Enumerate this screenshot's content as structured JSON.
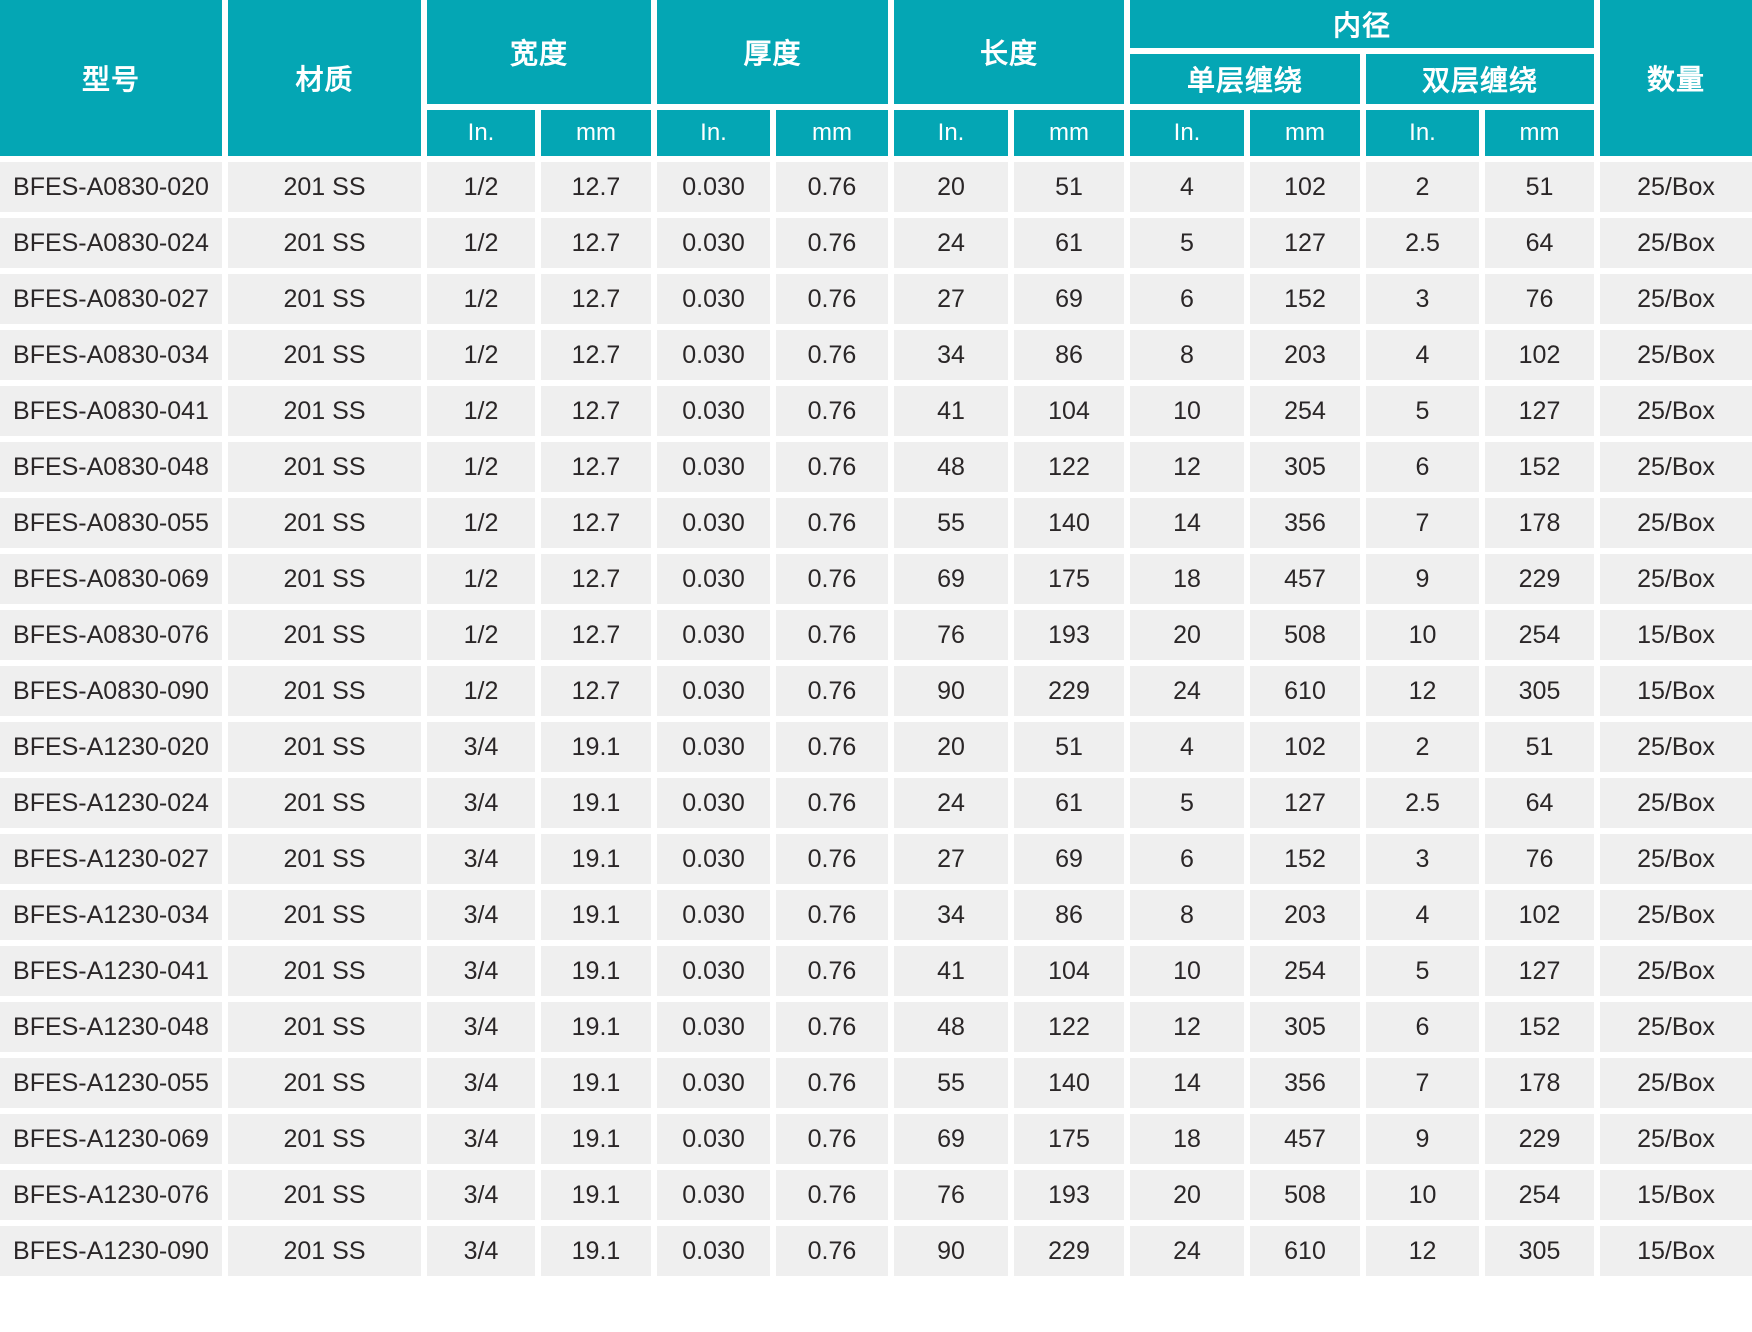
{
  "table": {
    "accent_color": "#04a6b4",
    "row_bg": "#efefef",
    "text_color": "#2a2627",
    "header": {
      "model": "型号",
      "material": "材质",
      "width": "宽度",
      "thickness": "厚度",
      "length": "长度",
      "inner_diameter": "内径",
      "single_wrap": "单层缠绕",
      "double_wrap": "双层缠绕",
      "quantity": "数量",
      "unit_in": "In.",
      "unit_mm": "mm"
    },
    "columns": [
      "model",
      "material",
      "width_in",
      "width_mm",
      "thickness_in",
      "thickness_mm",
      "length_in",
      "length_mm",
      "single_in",
      "single_mm",
      "double_in",
      "double_mm",
      "quantity"
    ],
    "rows": [
      [
        "BFES-A0830-020",
        "201 SS",
        "1/2",
        "12.7",
        "0.030",
        "0.76",
        "20",
        "51",
        "4",
        "102",
        "2",
        "51",
        "25/Box"
      ],
      [
        "BFES-A0830-024",
        "201 SS",
        "1/2",
        "12.7",
        "0.030",
        "0.76",
        "24",
        "61",
        "5",
        "127",
        "2.5",
        "64",
        "25/Box"
      ],
      [
        "BFES-A0830-027",
        "201 SS",
        "1/2",
        "12.7",
        "0.030",
        "0.76",
        "27",
        "69",
        "6",
        "152",
        "3",
        "76",
        "25/Box"
      ],
      [
        "BFES-A0830-034",
        "201 SS",
        "1/2",
        "12.7",
        "0.030",
        "0.76",
        "34",
        "86",
        "8",
        "203",
        "4",
        "102",
        "25/Box"
      ],
      [
        "BFES-A0830-041",
        "201 SS",
        "1/2",
        "12.7",
        "0.030",
        "0.76",
        "41",
        "104",
        "10",
        "254",
        "5",
        "127",
        "25/Box"
      ],
      [
        "BFES-A0830-048",
        "201 SS",
        "1/2",
        "12.7",
        "0.030",
        "0.76",
        "48",
        "122",
        "12",
        "305",
        "6",
        "152",
        "25/Box"
      ],
      [
        "BFES-A0830-055",
        "201 SS",
        "1/2",
        "12.7",
        "0.030",
        "0.76",
        "55",
        "140",
        "14",
        "356",
        "7",
        "178",
        "25/Box"
      ],
      [
        "BFES-A0830-069",
        "201 SS",
        "1/2",
        "12.7",
        "0.030",
        "0.76",
        "69",
        "175",
        "18",
        "457",
        "9",
        "229",
        "25/Box"
      ],
      [
        "BFES-A0830-076",
        "201 SS",
        "1/2",
        "12.7",
        "0.030",
        "0.76",
        "76",
        "193",
        "20",
        "508",
        "10",
        "254",
        "15/Box"
      ],
      [
        "BFES-A0830-090",
        "201 SS",
        "1/2",
        "12.7",
        "0.030",
        "0.76",
        "90",
        "229",
        "24",
        "610",
        "12",
        "305",
        "15/Box"
      ],
      [
        "BFES-A1230-020",
        "201 SS",
        "3/4",
        "19.1",
        "0.030",
        "0.76",
        "20",
        "51",
        "4",
        "102",
        "2",
        "51",
        "25/Box"
      ],
      [
        "BFES-A1230-024",
        "201 SS",
        "3/4",
        "19.1",
        "0.030",
        "0.76",
        "24",
        "61",
        "5",
        "127",
        "2.5",
        "64",
        "25/Box"
      ],
      [
        "BFES-A1230-027",
        "201 SS",
        "3/4",
        "19.1",
        "0.030",
        "0.76",
        "27",
        "69",
        "6",
        "152",
        "3",
        "76",
        "25/Box"
      ],
      [
        "BFES-A1230-034",
        "201 SS",
        "3/4",
        "19.1",
        "0.030",
        "0.76",
        "34",
        "86",
        "8",
        "203",
        "4",
        "102",
        "25/Box"
      ],
      [
        "BFES-A1230-041",
        "201 SS",
        "3/4",
        "19.1",
        "0.030",
        "0.76",
        "41",
        "104",
        "10",
        "254",
        "5",
        "127",
        "25/Box"
      ],
      [
        "BFES-A1230-048",
        "201 SS",
        "3/4",
        "19.1",
        "0.030",
        "0.76",
        "48",
        "122",
        "12",
        "305",
        "6",
        "152",
        "25/Box"
      ],
      [
        "BFES-A1230-055",
        "201 SS",
        "3/4",
        "19.1",
        "0.030",
        "0.76",
        "55",
        "140",
        "14",
        "356",
        "7",
        "178",
        "25/Box"
      ],
      [
        "BFES-A1230-069",
        "201 SS",
        "3/4",
        "19.1",
        "0.030",
        "0.76",
        "69",
        "175",
        "18",
        "457",
        "9",
        "229",
        "25/Box"
      ],
      [
        "BFES-A1230-076",
        "201 SS",
        "3/4",
        "19.1",
        "0.030",
        "0.76",
        "76",
        "193",
        "20",
        "508",
        "10",
        "254",
        "15/Box"
      ],
      [
        "BFES-A1230-090",
        "201 SS",
        "3/4",
        "19.1",
        "0.030",
        "0.76",
        "90",
        "229",
        "24",
        "610",
        "12",
        "305",
        "15/Box"
      ]
    ]
  }
}
